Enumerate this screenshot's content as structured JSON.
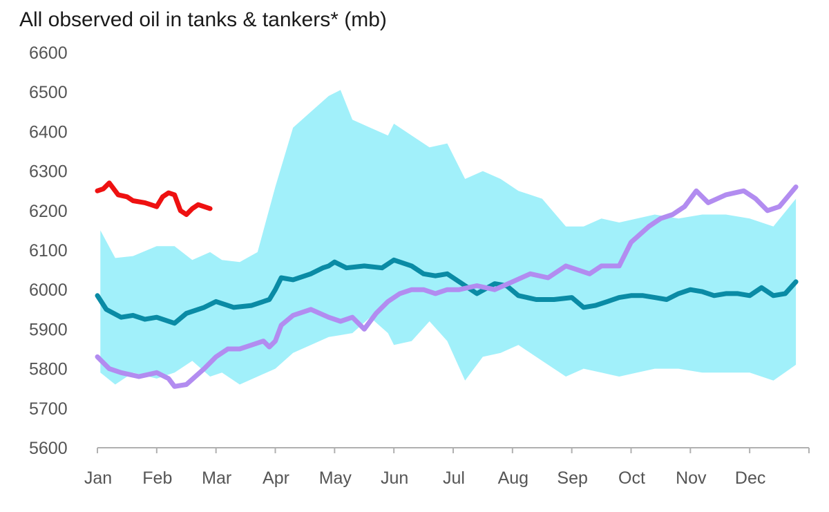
{
  "chart_data": {
    "type": "line",
    "title": "All observed oil in tanks & tankers* (mb)",
    "xlabel": "",
    "ylabel": "",
    "ylim": [
      5600,
      6600
    ],
    "yticks": [
      5600,
      5700,
      5800,
      5900,
      6000,
      6100,
      6200,
      6300,
      6400,
      6500,
      6600
    ],
    "categories": [
      "Jan",
      "Feb",
      "Mar",
      "Apr",
      "May",
      "Jun",
      "Jul",
      "Aug",
      "Sep",
      "Oct",
      "Nov",
      "Dec"
    ],
    "x_unit": "month index (0 = start of Jan, 12 = end of Dec)",
    "grid": false,
    "legend": "none",
    "colors": {
      "range": "#a1f0fa",
      "series_dark_teal": "#0a8ba5",
      "series_purple": "#b28cf0",
      "series_red": "#ee1111",
      "axis": "#b0b0b0"
    },
    "range_band": {
      "x": [
        0.05,
        0.3,
        0.6,
        1.0,
        1.3,
        1.6,
        1.9,
        2.1,
        2.4,
        2.7,
        3.0,
        3.3,
        3.6,
        3.9,
        4.1,
        4.3,
        4.6,
        4.9,
        5.0,
        5.3,
        5.6,
        5.9,
        6.2,
        6.5,
        6.8,
        7.1,
        7.5,
        7.9,
        8.2,
        8.5,
        8.8,
        9.1,
        9.4,
        9.8,
        10.2,
        10.6,
        11.0,
        11.4,
        11.78
      ],
      "upper": [
        6150,
        6080,
        6085,
        6110,
        6110,
        6075,
        6095,
        6075,
        6070,
        6095,
        6260,
        6410,
        6450,
        6490,
        6505,
        6430,
        6410,
        6390,
        6420,
        6390,
        6360,
        6370,
        6280,
        6300,
        6280,
        6250,
        6230,
        6160,
        6160,
        6180,
        6170,
        6180,
        6190,
        6180,
        6190,
        6190,
        6180,
        6160,
        6230
      ],
      "lower": [
        5790,
        5760,
        5790,
        5775,
        5790,
        5820,
        5780,
        5790,
        5760,
        5780,
        5800,
        5840,
        5860,
        5880,
        5885,
        5890,
        5930,
        5890,
        5860,
        5870,
        5920,
        5870,
        5770,
        5830,
        5840,
        5860,
        5820,
        5780,
        5800,
        5790,
        5780,
        5790,
        5800,
        5800,
        5790,
        5790,
        5790,
        5770,
        5810
      ]
    },
    "series": [
      {
        "x": [
          0.0,
          0.15,
          0.4,
          0.6,
          0.8,
          1.0,
          1.1,
          1.3,
          1.5,
          1.8,
          2.0,
          2.2,
          2.3,
          2.6,
          2.9,
          3.0,
          3.1,
          3.3,
          3.6,
          3.8,
          3.9,
          4.0,
          4.2,
          4.5,
          4.8,
          5.0,
          5.3,
          5.5,
          5.7,
          5.9,
          6.0,
          6.2,
          6.4,
          6.7,
          6.9,
          7.1,
          7.4,
          7.7,
          8.0,
          8.2,
          8.4,
          8.6,
          8.8,
          9.0,
          9.2,
          9.4,
          9.6,
          9.8,
          10.0,
          10.2,
          10.4,
          10.6,
          10.8,
          11.0,
          11.2,
          11.4,
          11.6,
          11.78
        ],
        "values": [
          5985,
          5950,
          5930,
          5935,
          5925,
          5930,
          5925,
          5915,
          5940,
          5955,
          5970,
          5960,
          5955,
          5960,
          5975,
          6000,
          6030,
          6025,
          6040,
          6055,
          6060,
          6070,
          6055,
          6060,
          6055,
          6075,
          6060,
          6040,
          6035,
          6040,
          6030,
          6010,
          5990,
          6015,
          6010,
          5985,
          5975,
          5975,
          5980,
          5955,
          5960,
          5970,
          5980,
          5985,
          5985,
          5980,
          5975,
          5990,
          6000,
          5995,
          5985,
          5990,
          5990,
          5985,
          6005,
          5985,
          5990,
          6020
        ]
      },
      {
        "x": [
          0.0,
          0.2,
          0.4,
          0.7,
          1.0,
          1.2,
          1.3,
          1.5,
          1.8,
          2.0,
          2.2,
          2.4,
          2.6,
          2.8,
          2.9,
          3.0,
          3.1,
          3.3,
          3.6,
          3.9,
          4.1,
          4.3,
          4.5,
          4.7,
          4.9,
          5.1,
          5.3,
          5.5,
          5.7,
          5.9,
          6.1,
          6.4,
          6.7,
          7.0,
          7.3,
          7.6,
          7.9,
          8.1,
          8.3,
          8.5,
          8.8,
          9.0,
          9.3,
          9.5,
          9.7,
          9.9,
          10.1,
          10.3,
          10.6,
          10.9,
          11.1,
          11.3,
          11.5,
          11.78
        ],
        "values": [
          5830,
          5800,
          5790,
          5780,
          5790,
          5775,
          5755,
          5760,
          5800,
          5830,
          5850,
          5850,
          5860,
          5870,
          5855,
          5870,
          5910,
          5935,
          5950,
          5930,
          5920,
          5930,
          5900,
          5940,
          5970,
          5990,
          6000,
          6000,
          5990,
          6000,
          6000,
          6010,
          6000,
          6020,
          6040,
          6030,
          6060,
          6050,
          6040,
          6060,
          6060,
          6120,
          6160,
          6180,
          6190,
          6210,
          6250,
          6220,
          6240,
          6250,
          6230,
          6200,
          6210,
          6260
        ]
      },
      {
        "x": [
          0.0,
          0.1,
          0.2,
          0.35,
          0.5,
          0.6,
          0.8,
          0.9,
          1.0,
          1.1,
          1.2,
          1.3,
          1.35,
          1.4,
          1.5,
          1.6,
          1.7,
          1.8,
          1.9
        ],
        "values": [
          6250,
          6255,
          6270,
          6240,
          6235,
          6225,
          6220,
          6215,
          6210,
          6235,
          6245,
          6240,
          6220,
          6200,
          6190,
          6205,
          6215,
          6210,
          6205
        ]
      }
    ]
  }
}
